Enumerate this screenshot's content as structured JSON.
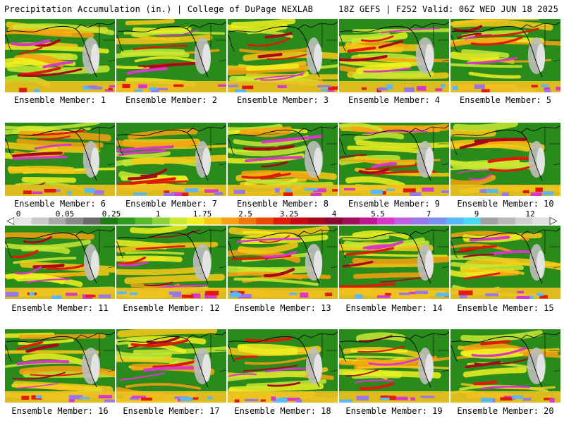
{
  "header": {
    "left": "Precipitation Accumulation (in.) | College of DuPage NEXLAB",
    "right": "18Z GEFS | F252 Valid: 06Z WED JUN 18 2025"
  },
  "panels": [
    "Ensemble Member: 1",
    "Ensemble Member: 2",
    "Ensemble Member: 3",
    "Ensemble Member: 4",
    "Ensemble Member: 5",
    "Ensemble Member: 6",
    "Ensemble Member: 7",
    "Ensemble Member: 8",
    "Ensemble Member: 9",
    "Ensemble Member: 10",
    "Ensemble Member: 11",
    "Ensemble Member: 12",
    "Ensemble Member: 13",
    "Ensemble Member: 14",
    "Ensemble Member: 15",
    "Ensemble Member: 16",
    "Ensemble Member: 17",
    "Ensemble Member: 18",
    "Ensemble Member: 19",
    "Ensemble Member: 20"
  ],
  "legend": {
    "labels": [
      "0",
      "0.05",
      "0.25",
      "1",
      "1.75",
      "2.5",
      "3.25",
      "4",
      "5.5",
      "7",
      "9",
      "12"
    ],
    "colors": [
      "#e6e6e6",
      "#c8c8c8",
      "#a8a8a8",
      "#888888",
      "#6a6a6a",
      "#1e7a12",
      "#2e9a20",
      "#56b82c",
      "#8ed23a",
      "#c8e832",
      "#f0f020",
      "#f8c818",
      "#f8a010",
      "#f07808",
      "#e84a06",
      "#e01a06",
      "#c80a10",
      "#a8081c",
      "#880a30",
      "#a0105a",
      "#c01890",
      "#d838c8",
      "#c060e0",
      "#9878e8",
      "#7890f0",
      "#58b8f8",
      "#48d8f0",
      "#a0a0a0",
      "#b8b8b8",
      "#d0d0d0",
      "#e0e0e0"
    ]
  }
}
